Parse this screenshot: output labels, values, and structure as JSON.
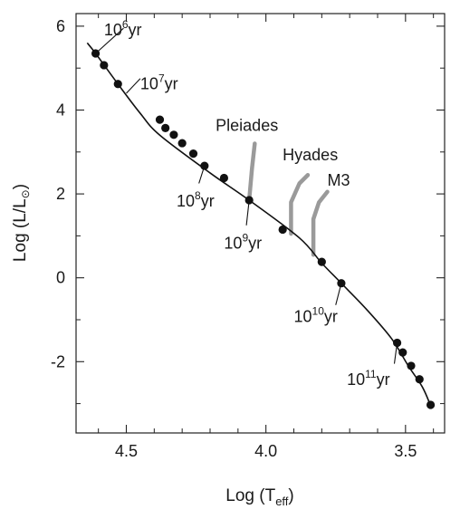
{
  "chart_data": {
    "type": "line",
    "xlabel": "Log (T",
    "xlabel_sub": "eff",
    "xlabel_close": ")",
    "ylabel": "Log (L/L",
    "ylabel_sym": "⊙",
    "ylabel_close": ")",
    "xlim": [
      4.68,
      3.36
    ],
    "ylim": [
      -3.7,
      6.3
    ],
    "x_reversed": true,
    "xticks": [
      {
        "value": 4.5,
        "label": "4.5"
      },
      {
        "value": 4.0,
        "label": "4.0"
      },
      {
        "value": 3.5,
        "label": "3.5"
      }
    ],
    "yticks": [
      {
        "value": 6,
        "label": "6"
      },
      {
        "value": 4,
        "label": "4"
      },
      {
        "value": 2,
        "label": "2"
      },
      {
        "value": 0,
        "label": "0"
      },
      {
        "value": -2,
        "label": "-2"
      }
    ],
    "grid": false,
    "series": [
      {
        "line": [
          {
            "x": 4.64,
            "y": 5.6
          },
          {
            "x": 4.61,
            "y": 5.35
          },
          {
            "x": 4.53,
            "y": 4.62
          },
          {
            "x": 4.45,
            "y": 3.92
          },
          {
            "x": 4.38,
            "y": 3.4
          },
          {
            "x": 4.2,
            "y": 2.5
          },
          {
            "x": 4.06,
            "y": 1.85
          },
          {
            "x": 3.88,
            "y": 0.95
          },
          {
            "x": 3.8,
            "y": 0.35
          },
          {
            "x": 3.73,
            "y": -0.13
          },
          {
            "x": 3.64,
            "y": -0.75
          },
          {
            "x": 3.55,
            "y": -1.45
          },
          {
            "x": 3.49,
            "y": -2.1
          },
          {
            "x": 3.44,
            "y": -2.6
          },
          {
            "x": 3.41,
            "y": -3.05
          }
        ],
        "points": [
          {
            "x": 4.61,
            "y": 5.35
          },
          {
            "x": 4.58,
            "y": 5.07
          },
          {
            "x": 4.53,
            "y": 4.62
          },
          {
            "x": 4.38,
            "y": 3.77
          },
          {
            "x": 4.36,
            "y": 3.57
          },
          {
            "x": 4.33,
            "y": 3.41
          },
          {
            "x": 4.3,
            "y": 3.21
          },
          {
            "x": 4.26,
            "y": 2.96
          },
          {
            "x": 4.22,
            "y": 2.67
          },
          {
            "x": 4.15,
            "y": 2.38
          },
          {
            "x": 4.06,
            "y": 1.85
          },
          {
            "x": 3.94,
            "y": 1.15
          },
          {
            "x": 3.8,
            "y": 0.38
          },
          {
            "x": 3.73,
            "y": -0.13
          },
          {
            "x": 3.53,
            "y": -1.55
          },
          {
            "x": 3.51,
            "y": -1.78
          },
          {
            "x": 3.48,
            "y": -2.1
          },
          {
            "x": 3.45,
            "y": -2.42
          },
          {
            "x": 3.41,
            "y": -3.03
          }
        ]
      }
    ],
    "annotations": [
      {
        "base": "10",
        "exp": "6",
        "unit": "yr",
        "x": 4.61,
        "y": 5.35,
        "lx": 4.51,
        "ly": 5.95,
        "tx": 4.58,
        "ty": 5.78,
        "anchor": "start"
      },
      {
        "base": "10",
        "exp": "7",
        "unit": "yr",
        "x": 4.5,
        "y": 4.4,
        "lx": 4.45,
        "ly": 4.75,
        "tx": 4.45,
        "ty": 4.5,
        "anchor": "start"
      },
      {
        "base": "10",
        "exp": "8",
        "unit": "yr",
        "x": 4.22,
        "y": 2.67,
        "lx": 4.24,
        "ly": 2.25,
        "tx": 4.32,
        "ty": 1.7,
        "anchor": "start"
      },
      {
        "base": "10",
        "exp": "9",
        "unit": "yr",
        "x": 4.06,
        "y": 1.85,
        "lx": 4.07,
        "ly": 1.25,
        "tx": 4.15,
        "ty": 0.7,
        "anchor": "start"
      },
      {
        "base": "10",
        "exp": "10",
        "unit": "yr",
        "x": 3.73,
        "y": -0.13,
        "lx": 3.75,
        "ly": -0.65,
        "tx": 3.9,
        "ty": -1.05,
        "anchor": "start"
      },
      {
        "base": "10",
        "exp": "11",
        "unit": "yr",
        "x": 3.53,
        "y": -1.55,
        "lx": 3.54,
        "ly": -2.05,
        "tx": 3.71,
        "ty": -2.55,
        "anchor": "start"
      }
    ],
    "clusters": [
      {
        "name": "Pleiades",
        "tx": 4.18,
        "ty": 3.5,
        "path": [
          [
            4.06,
            1.85
          ],
          [
            4.05,
            2.6
          ],
          [
            4.04,
            3.2
          ]
        ]
      },
      {
        "name": "Hyades",
        "tx": 3.94,
        "ty": 2.8,
        "path": [
          [
            3.91,
            1.05
          ],
          [
            3.91,
            1.8
          ],
          [
            3.88,
            2.25
          ],
          [
            3.85,
            2.45
          ]
        ]
      },
      {
        "name": "M3",
        "tx": 3.78,
        "ty": 2.2,
        "path": [
          [
            3.83,
            0.55
          ],
          [
            3.83,
            1.4
          ],
          [
            3.81,
            1.8
          ],
          [
            3.78,
            2.05
          ]
        ]
      }
    ]
  }
}
